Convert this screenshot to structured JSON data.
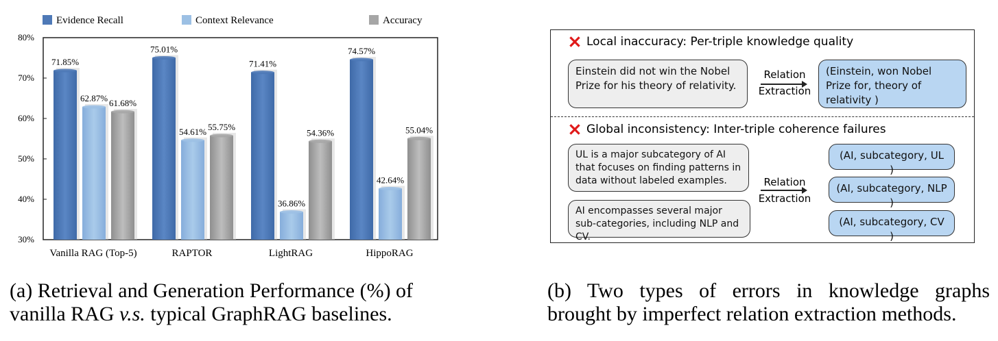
{
  "chart_data": {
    "type": "bar",
    "categories": [
      "Vanilla RAG (Top-5)",
      "RAPTOR",
      "LightRAG",
      "HippoRAG"
    ],
    "series": [
      {
        "name": "Evidence Recall",
        "color": "#4e79b7",
        "values": [
          71.85,
          75.01,
          71.41,
          74.57
        ],
        "labels": [
          "71.85%",
          "75.01%",
          "71.41%",
          "74.57%"
        ]
      },
      {
        "name": "Context Relevance",
        "color": "#9cc0e4",
        "values": [
          62.87,
          54.61,
          36.86,
          42.64
        ],
        "labels": [
          "62.87%",
          "54.61%",
          "36.86%",
          "42.64%"
        ]
      },
      {
        "name": "Accuracy",
        "color": "#a6a6a6",
        "values": [
          61.68,
          55.75,
          54.36,
          55.04
        ],
        "labels": [
          "61.68%",
          "55.75%",
          "54.36%",
          "55.04%"
        ]
      }
    ],
    "yticks": [
      "30%",
      "40%",
      "50%",
      "60%",
      "70%",
      "80%"
    ],
    "ylim": [
      30,
      80
    ],
    "grid": false,
    "legend": "top"
  },
  "captions": {
    "a_line1": "(a) Retrieval and Generation Performance (%) of",
    "a_line2_prefix": "vanilla RAG ",
    "a_line2_italic": "v.s.",
    "a_line2_suffix": " typical GraphRAG baselines.",
    "b_line1": "(b) Two types of errors in knowledge graphs",
    "b_line2": "brought by imperfect relation extraction methods."
  },
  "panel_b": {
    "local": {
      "title": "Local inaccuracy: Per-triple knowledge quality",
      "sentence": "Einstein did not win the Nobel Prize for his theory of relativity.",
      "relation_label_1": "Relation",
      "relation_label_2": "Extraction",
      "triple": "(Einstein, won Nobel Prize for, theory of relativity )"
    },
    "global": {
      "title": "Global inconsistency: Inter-triple coherence failures",
      "sentence_1": "UL is a major subcategory of AI that focuses on finding patterns in data without labeled examples.",
      "sentence_2": "AI encompasses several major sub-categories, including NLP and CV.",
      "relation_label_1": "Relation",
      "relation_label_2": "Extraction",
      "triples": [
        "(AI, subcategory, UL )",
        "(AI, subcategory, NLP )",
        "(AI, subcategory, CV )"
      ]
    },
    "error_icon": "red-x-icon"
  }
}
